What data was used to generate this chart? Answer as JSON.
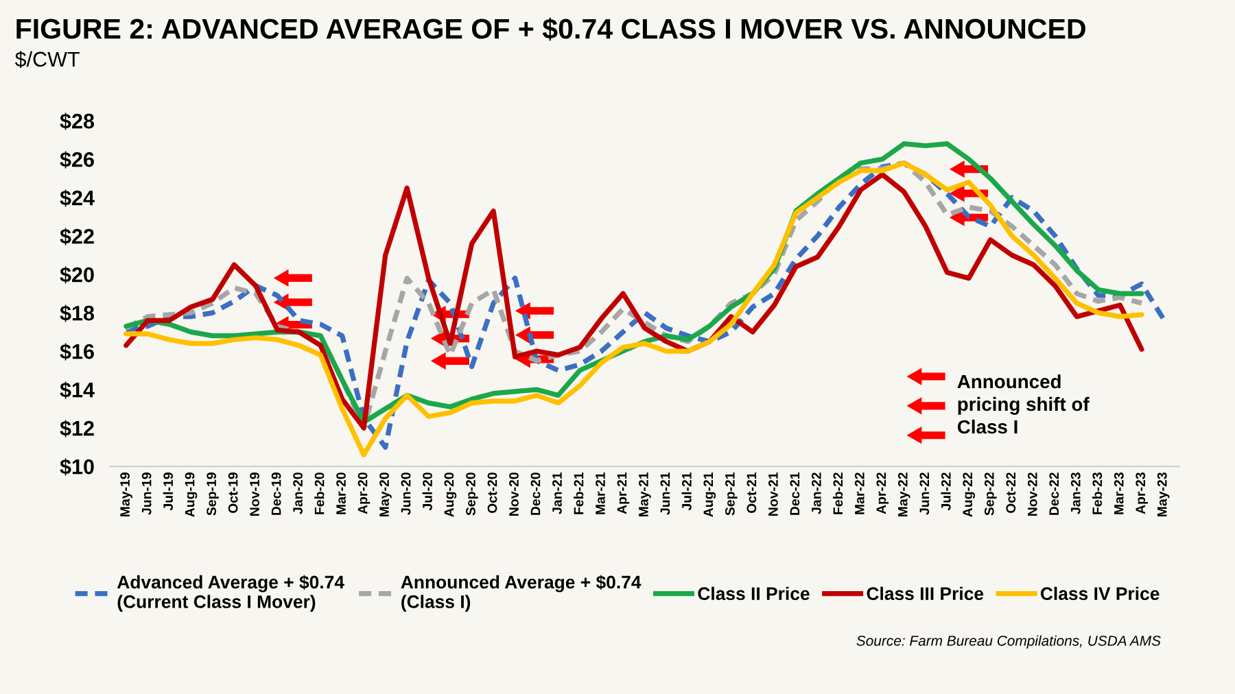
{
  "chart_data": {
    "type": "line",
    "title": "FIGURE 2: ADVANCED AVERAGE OF + $0.74 CLASS I MOVER VS. ANNOUNCED",
    "ylabel": "$/CWT",
    "categories": [
      "May-19",
      "Jun-19",
      "Jul-19",
      "Aug-19",
      "Sep-19",
      "Oct-19",
      "Nov-19",
      "Dec-19",
      "Jan-20",
      "Feb-20",
      "Mar-20",
      "Apr-20",
      "May-20",
      "Jun-20",
      "Jul-20",
      "Aug-20",
      "Sep-20",
      "Oct-20",
      "Nov-20",
      "Dec-20",
      "Jan-21",
      "Feb-21",
      "Mar-21",
      "Apr-21",
      "May-21",
      "Jun-21",
      "Jul-21",
      "Aug-21",
      "Sep-21",
      "Oct-21",
      "Nov-21",
      "Dec-21",
      "Jan-22",
      "Feb-22",
      "Mar-22",
      "Apr-22",
      "May-22",
      "Jun-22",
      "Jul-22",
      "Aug-22",
      "Sep-22",
      "Oct-22",
      "Nov-22",
      "Dec-22",
      "Jan-23",
      "Feb-23",
      "Mar-23",
      "Apr-23",
      "May-23"
    ],
    "series": [
      {
        "name": "Advanced Average + $0.74\n(Current Class I Mover)",
        "color": "#3a6fc4",
        "line_style": "dashed",
        "values": [
          17.1,
          17.3,
          17.8,
          17.8,
          18.0,
          18.6,
          19.4,
          18.9,
          17.6,
          17.4,
          16.8,
          12.5,
          11.0,
          16.5,
          19.7,
          18.5,
          15.2,
          18.5,
          19.8,
          15.5,
          15.0,
          15.3,
          16.0,
          17.0,
          18.0,
          17.2,
          16.8,
          16.5,
          17.0,
          18.3,
          19.0,
          20.8,
          22.0,
          23.5,
          24.7,
          25.6,
          25.8,
          25.2,
          24.2,
          23.0,
          22.5,
          24.0,
          23.3,
          22.0,
          20.3,
          18.9,
          18.9,
          19.5,
          17.7
        ]
      },
      {
        "name": "Announced Average + $0.74\n(Class I)",
        "color": "#a6a6a6",
        "line_style": "dashed",
        "values": [
          17.2,
          17.8,
          17.9,
          18.0,
          18.5,
          19.3,
          19.0,
          17.3,
          17.0,
          16.8,
          14.5,
          12.0,
          16.0,
          19.8,
          18.5,
          15.8,
          18.5,
          19.2,
          16.0,
          15.5,
          15.8,
          16.0,
          17.0,
          18.2,
          17.5,
          16.8,
          16.5,
          17.3,
          18.5,
          19.0,
          20.0,
          22.8,
          23.8,
          25.0,
          25.5,
          25.5,
          25.8,
          24.8,
          23.1,
          23.5,
          23.3,
          22.5,
          21.5,
          20.5,
          19.0,
          18.6,
          18.8,
          18.5,
          null
        ]
      },
      {
        "name": "Class II Price",
        "color": "#1aa84a",
        "line_style": "solid",
        "values": [
          17.3,
          17.6,
          17.4,
          17.0,
          16.8,
          16.8,
          16.9,
          17.0,
          17.0,
          16.8,
          14.5,
          12.3,
          13.0,
          13.7,
          13.3,
          13.1,
          13.5,
          13.8,
          13.9,
          14.0,
          13.7,
          15.0,
          15.5,
          16.0,
          16.5,
          16.8,
          16.6,
          17.3,
          18.3,
          19.0,
          20.3,
          23.3,
          24.2,
          25.0,
          25.8,
          26.0,
          26.8,
          26.7,
          26.8,
          26.0,
          25.0,
          23.8,
          22.6,
          21.5,
          20.2,
          19.2,
          19.0,
          19.0,
          null
        ]
      },
      {
        "name": "Class III Price",
        "color": "#c00000",
        "line_style": "solid",
        "values": [
          16.3,
          17.6,
          17.6,
          18.3,
          18.7,
          20.5,
          19.4,
          17.1,
          17.0,
          16.3,
          13.5,
          12.0,
          21.0,
          24.5,
          19.8,
          16.4,
          21.6,
          23.3,
          15.7,
          16.0,
          15.8,
          16.2,
          17.7,
          19.0,
          17.2,
          16.5,
          16.0,
          16.5,
          17.8,
          17.0,
          18.4,
          20.4,
          20.9,
          22.5,
          24.4,
          25.2,
          24.3,
          22.5,
          20.1,
          19.8,
          21.8,
          21.0,
          20.5,
          19.4,
          17.8,
          18.1,
          18.4,
          16.1,
          null
        ]
      },
      {
        "name": "Class IV Price",
        "color": "#ffc000",
        "line_style": "solid",
        "values": [
          16.9,
          16.9,
          16.6,
          16.4,
          16.4,
          16.6,
          16.7,
          16.6,
          16.3,
          15.8,
          13.0,
          10.6,
          12.5,
          13.7,
          12.6,
          12.8,
          13.3,
          13.4,
          13.4,
          13.7,
          13.3,
          14.2,
          15.4,
          16.2,
          16.4,
          16.0,
          16.0,
          16.5,
          17.4,
          19.0,
          20.5,
          23.2,
          24.0,
          24.8,
          25.4,
          25.4,
          25.8,
          25.2,
          24.4,
          24.8,
          23.6,
          22.0,
          21.0,
          19.8,
          18.5,
          18.0,
          17.8,
          17.9,
          null
        ]
      }
    ],
    "ylim": [
      10,
      28
    ],
    "yticks": [
      {
        "value": 10,
        "label": "$10"
      },
      {
        "value": 12,
        "label": "$12"
      },
      {
        "value": 14,
        "label": "$14"
      },
      {
        "value": 16,
        "label": "$16"
      },
      {
        "value": 18,
        "label": "$18"
      },
      {
        "value": 20,
        "label": "$20"
      },
      {
        "value": 22,
        "label": "$22"
      },
      {
        "value": 24,
        "label": "$24"
      },
      {
        "value": 26,
        "label": "$26"
      },
      {
        "value": 28,
        "label": "$28"
      }
    ],
    "grid": false,
    "legend": "bottom",
    "marker": "none",
    "annotations": [
      "Announced\npricing shift of\nClass I",
      "Source: Farm Bureau Compilations, USDA AMS"
    ]
  }
}
